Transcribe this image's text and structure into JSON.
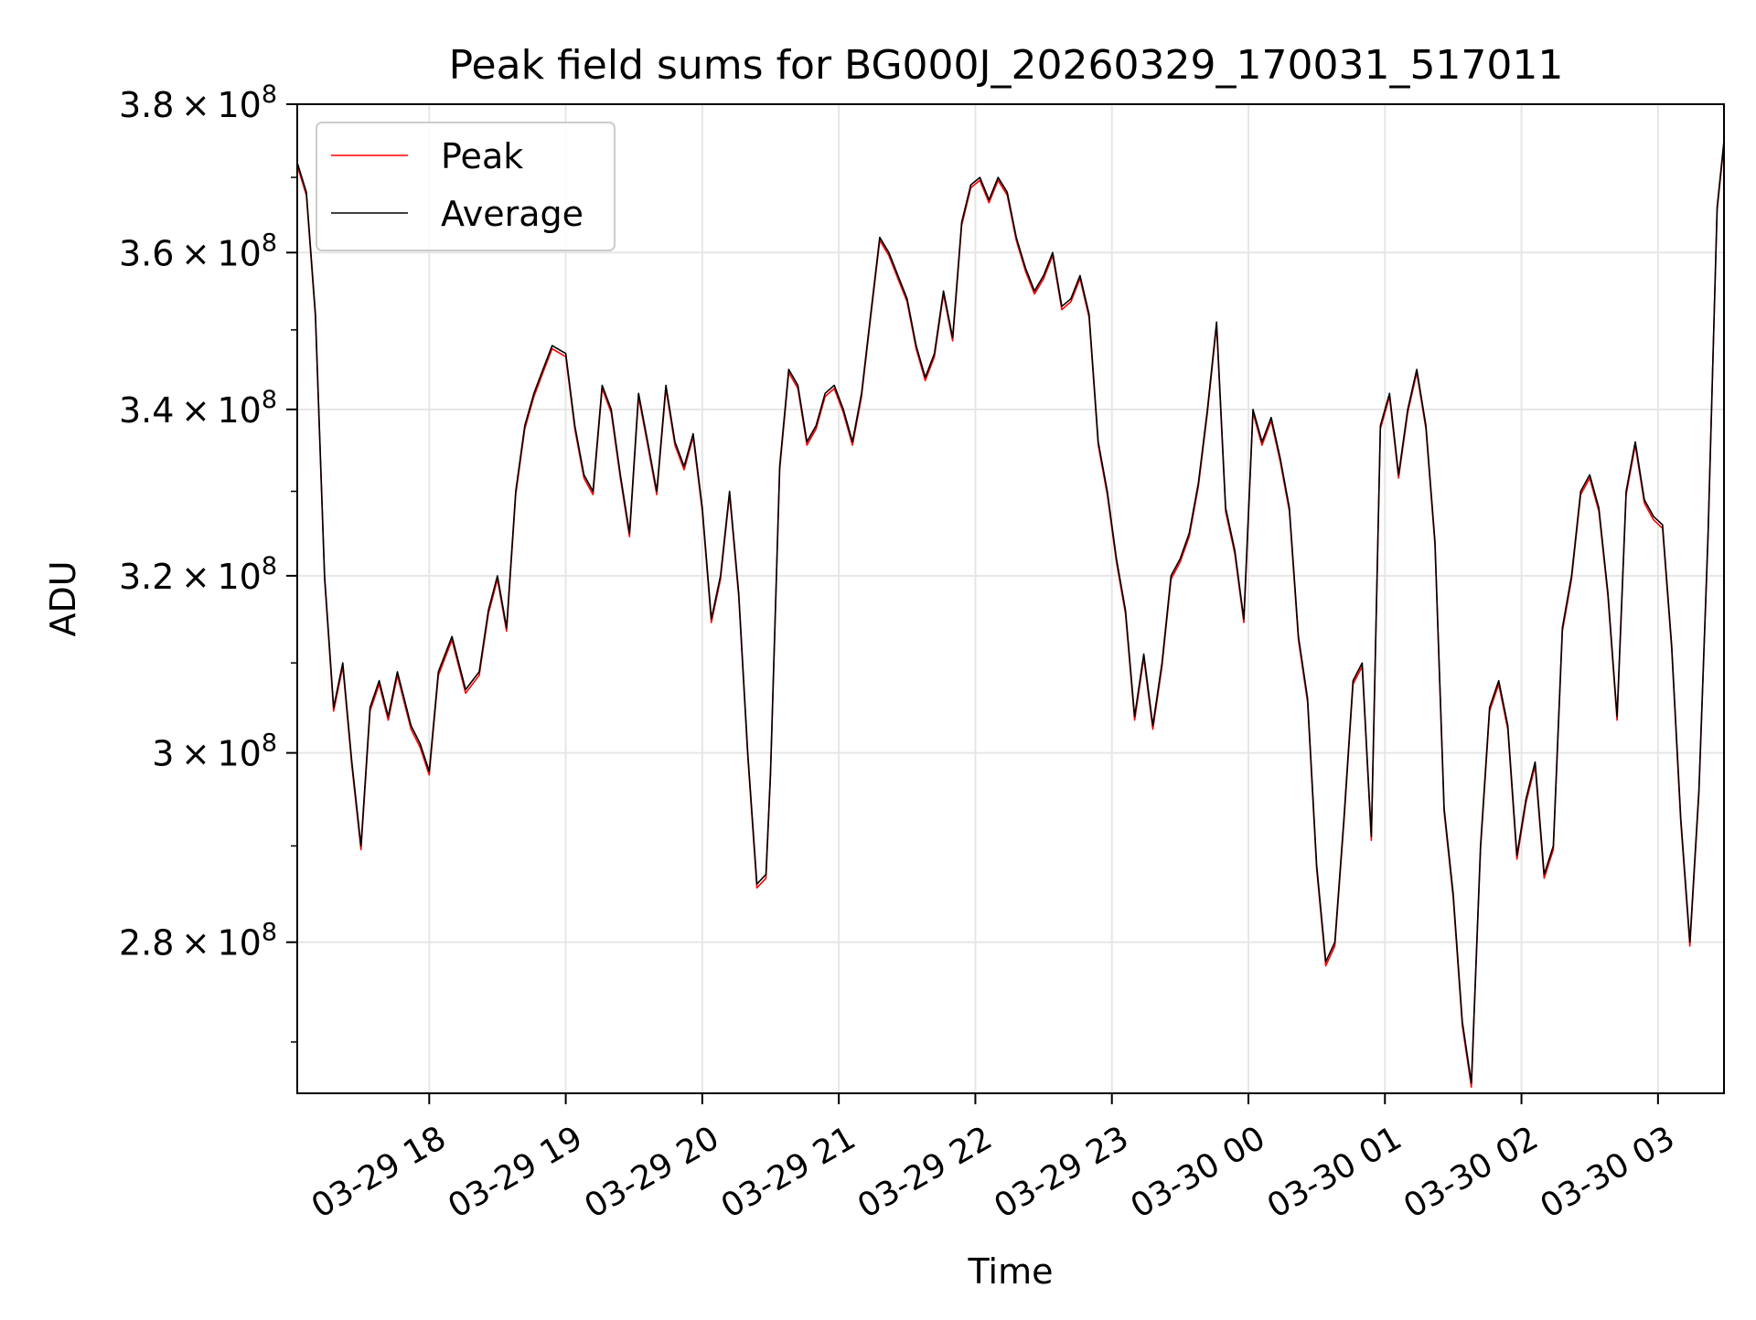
{
  "chart_data": {
    "type": "line",
    "title": "Peak field sums for BG000J_20260329_170031_517011",
    "xlabel": "Time",
    "ylabel": "ADU",
    "yscale": "log",
    "ylim": [
      265000000,
      380000000
    ],
    "xlim": [
      "2026-03-29 17:02",
      "2026-03-30 03:29"
    ],
    "grid": true,
    "legend_position": "top-left",
    "x_ticks": [
      {
        "label": "03-29 18",
        "t": "2026-03-29 18:00"
      },
      {
        "label": "03-29 19",
        "t": "2026-03-29 19:00"
      },
      {
        "label": "03-29 20",
        "t": "2026-03-29 20:00"
      },
      {
        "label": "03-29 21",
        "t": "2026-03-29 21:00"
      },
      {
        "label": "03-29 22",
        "t": "2026-03-29 22:00"
      },
      {
        "label": "03-29 23",
        "t": "2026-03-29 23:00"
      },
      {
        "label": "03-30 00",
        "t": "2026-03-30 00:00"
      },
      {
        "label": "03-30 01",
        "t": "2026-03-30 01:00"
      },
      {
        "label": "03-30 02",
        "t": "2026-03-30 02:00"
      },
      {
        "label": "03-30 03",
        "t": "2026-03-30 03:00"
      }
    ],
    "y_ticks": [
      {
        "value": 280000000,
        "mantissa": "2.8",
        "exponent": "8"
      },
      {
        "value": 300000000,
        "mantissa": "3",
        "exponent": "8"
      },
      {
        "value": 320000000,
        "mantissa": "3.2",
        "exponent": "8"
      },
      {
        "value": 340000000,
        "mantissa": "3.4",
        "exponent": "8"
      },
      {
        "value": 360000000,
        "mantissa": "3.6",
        "exponent": "8"
      },
      {
        "value": 380000000,
        "mantissa": "3.8",
        "exponent": "8"
      }
    ],
    "tick_times_sign": "×",
    "tick_base": "10",
    "series": [
      {
        "name": "Peak",
        "color": "#ff0000"
      },
      {
        "name": "Average",
        "color": "#000000"
      }
    ],
    "x": [
      "2026-03-29 17:02",
      "2026-03-29 17:06",
      "2026-03-29 17:10",
      "2026-03-29 17:14",
      "2026-03-29 17:18",
      "2026-03-29 17:22",
      "2026-03-29 17:26",
      "2026-03-29 17:30",
      "2026-03-29 17:34",
      "2026-03-29 17:38",
      "2026-03-29 17:42",
      "2026-03-29 17:46",
      "2026-03-29 17:52",
      "2026-03-29 17:56",
      "2026-03-29 18:00",
      "2026-03-29 18:04",
      "2026-03-29 18:10",
      "2026-03-29 18:16",
      "2026-03-29 18:22",
      "2026-03-29 18:26",
      "2026-03-29 18:30",
      "2026-03-29 18:34",
      "2026-03-29 18:38",
      "2026-03-29 18:42",
      "2026-03-29 18:46",
      "2026-03-29 18:50",
      "2026-03-29 18:54",
      "2026-03-29 19:00",
      "2026-03-29 19:04",
      "2026-03-29 19:08",
      "2026-03-29 19:12",
      "2026-03-29 19:16",
      "2026-03-29 19:20",
      "2026-03-29 19:24",
      "2026-03-29 19:28",
      "2026-03-29 19:32",
      "2026-03-29 19:36",
      "2026-03-29 19:40",
      "2026-03-29 19:44",
      "2026-03-29 19:48",
      "2026-03-29 19:52",
      "2026-03-29 19:56",
      "2026-03-29 20:00",
      "2026-03-29 20:04",
      "2026-03-29 20:08",
      "2026-03-29 20:12",
      "2026-03-29 20:16",
      "2026-03-29 20:20",
      "2026-03-29 20:24",
      "2026-03-29 20:28",
      "2026-03-29 20:30",
      "2026-03-29 20:34",
      "2026-03-29 20:38",
      "2026-03-29 20:42",
      "2026-03-29 20:46",
      "2026-03-29 20:50",
      "2026-03-29 20:54",
      "2026-03-29 20:58",
      "2026-03-29 21:02",
      "2026-03-29 21:06",
      "2026-03-29 21:10",
      "2026-03-29 21:14",
      "2026-03-29 21:18",
      "2026-03-29 21:22",
      "2026-03-29 21:26",
      "2026-03-29 21:30",
      "2026-03-29 21:34",
      "2026-03-29 21:38",
      "2026-03-29 21:42",
      "2026-03-29 21:46",
      "2026-03-29 21:50",
      "2026-03-29 21:54",
      "2026-03-29 21:58",
      "2026-03-29 22:02",
      "2026-03-29 22:06",
      "2026-03-29 22:10",
      "2026-03-29 22:14",
      "2026-03-29 22:18",
      "2026-03-29 22:22",
      "2026-03-29 22:26",
      "2026-03-29 22:30",
      "2026-03-29 22:34",
      "2026-03-29 22:38",
      "2026-03-29 22:42",
      "2026-03-29 22:46",
      "2026-03-29 22:50",
      "2026-03-29 22:54",
      "2026-03-29 22:58",
      "2026-03-29 23:02",
      "2026-03-29 23:06",
      "2026-03-29 23:10",
      "2026-03-29 23:14",
      "2026-03-29 23:18",
      "2026-03-29 23:22",
      "2026-03-29 23:26",
      "2026-03-29 23:30",
      "2026-03-29 23:34",
      "2026-03-29 23:38",
      "2026-03-29 23:42",
      "2026-03-29 23:46",
      "2026-03-29 23:50",
      "2026-03-29 23:54",
      "2026-03-29 23:58",
      "2026-03-30 00:02",
      "2026-03-30 00:06",
      "2026-03-30 00:10",
      "2026-03-30 00:14",
      "2026-03-30 00:18",
      "2026-03-30 00:22",
      "2026-03-30 00:26",
      "2026-03-30 00:30",
      "2026-03-30 00:34",
      "2026-03-30 00:38",
      "2026-03-30 00:42",
      "2026-03-30 00:46",
      "2026-03-30 00:50",
      "2026-03-30 00:54",
      "2026-03-30 00:58",
      "2026-03-30 01:02",
      "2026-03-30 01:06",
      "2026-03-30 01:10",
      "2026-03-30 01:14",
      "2026-03-30 01:18",
      "2026-03-30 01:22",
      "2026-03-30 01:26",
      "2026-03-30 01:30",
      "2026-03-30 01:34",
      "2026-03-30 01:38",
      "2026-03-30 01:42",
      "2026-03-30 01:46",
      "2026-03-30 01:50",
      "2026-03-30 01:54",
      "2026-03-30 01:58",
      "2026-03-30 02:02",
      "2026-03-30 02:06",
      "2026-03-30 02:10",
      "2026-03-30 02:14",
      "2026-03-30 02:18",
      "2026-03-30 02:22",
      "2026-03-30 02:26",
      "2026-03-30 02:30",
      "2026-03-30 02:34",
      "2026-03-30 02:38",
      "2026-03-30 02:42",
      "2026-03-30 02:46",
      "2026-03-30 02:50",
      "2026-03-30 02:54",
      "2026-03-30 02:58",
      "2026-03-30 03:02",
      "2026-03-30 03:06",
      "2026-03-30 03:10",
      "2026-03-30 03:14",
      "2026-03-30 03:18",
      "2026-03-30 03:22",
      "2026-03-30 03:26",
      "2026-03-30 03:29"
    ],
    "y": [
      372000000,
      368000000,
      352000000,
      320000000,
      305000000,
      310000000,
      299000000,
      290000000,
      305000000,
      308000000,
      304000000,
      309000000,
      303000000,
      301000000,
      298000000,
      309000000,
      313000000,
      307000000,
      309000000,
      316000000,
      320000000,
      314000000,
      330000000,
      338000000,
      342000000,
      345000000,
      348000000,
      347000000,
      338000000,
      332000000,
      330000000,
      343000000,
      340000000,
      332000000,
      325000000,
      342000000,
      336000000,
      330000000,
      343000000,
      336000000,
      333000000,
      337000000,
      328000000,
      315000000,
      320000000,
      330000000,
      318000000,
      300000000,
      286000000,
      287000000,
      298000000,
      333000000,
      345000000,
      343000000,
      336000000,
      338000000,
      342000000,
      343000000,
      340000000,
      336000000,
      342000000,
      352000000,
      362000000,
      360000000,
      357000000,
      354000000,
      348000000,
      344000000,
      347000000,
      355000000,
      349000000,
      364000000,
      369000000,
      370000000,
      367000000,
      370000000,
      368000000,
      362000000,
      358000000,
      355000000,
      357000000,
      360000000,
      353000000,
      354000000,
      357000000,
      352000000,
      336000000,
      330000000,
      322000000,
      316000000,
      304000000,
      311000000,
      303000000,
      310000000,
      320000000,
      322000000,
      325000000,
      331000000,
      340000000,
      351000000,
      328000000,
      323000000,
      315000000,
      340000000,
      336000000,
      339000000,
      334000000,
      328000000,
      313000000,
      306000000,
      288000000,
      278000000,
      280000000,
      293000000,
      308000000,
      310000000,
      291000000,
      338000000,
      342000000,
      332000000,
      340000000,
      345000000,
      338000000,
      324000000,
      294000000,
      285000000,
      272000000,
      266000000,
      290000000,
      305000000,
      308000000,
      303000000,
      289000000,
      295000000,
      299000000,
      287000000,
      290000000,
      314000000,
      320000000,
      330000000,
      332000000,
      328000000,
      318000000,
      304000000,
      330000000,
      336000000,
      329000000,
      327000000,
      326000000,
      312000000,
      293000000,
      280000000,
      296000000,
      325000000,
      366000000,
      375000000
    ]
  }
}
